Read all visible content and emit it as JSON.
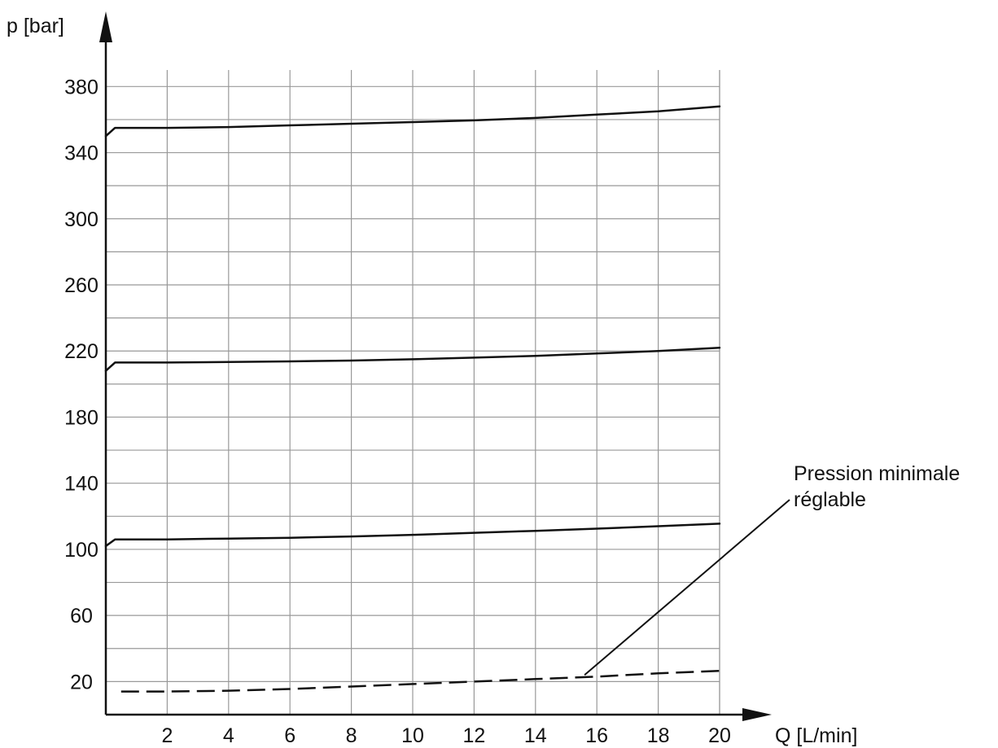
{
  "chart_data": {
    "type": "line",
    "xlabel": "Q [L/min]",
    "ylabel": "p [bar]",
    "xlim": [
      0,
      20
    ],
    "ylim": [
      0,
      390
    ],
    "x_ticks": [
      2,
      4,
      6,
      8,
      10,
      12,
      14,
      16,
      18,
      20
    ],
    "y_ticks": [
      20,
      60,
      100,
      140,
      180,
      220,
      260,
      300,
      340,
      380
    ],
    "grid": true,
    "colors": {
      "line": "#111111",
      "grid": "#999999"
    },
    "series": [
      {
        "style": "solid",
        "points": [
          [
            0,
            350
          ],
          [
            0.3,
            355
          ],
          [
            2,
            355
          ],
          [
            4,
            355.5
          ],
          [
            6,
            356.5
          ],
          [
            8,
            357.5
          ],
          [
            10,
            358.5
          ],
          [
            12,
            359.5
          ],
          [
            14,
            361
          ],
          [
            16,
            363
          ],
          [
            18,
            365
          ],
          [
            20,
            368
          ]
        ]
      },
      {
        "style": "solid",
        "points": [
          [
            0,
            208
          ],
          [
            0.3,
            213
          ],
          [
            2,
            213
          ],
          [
            4,
            213.3
          ],
          [
            6,
            213.7
          ],
          [
            8,
            214.2
          ],
          [
            10,
            215
          ],
          [
            12,
            216
          ],
          [
            14,
            217
          ],
          [
            16,
            218.5
          ],
          [
            18,
            220
          ],
          [
            20,
            222
          ]
        ]
      },
      {
        "style": "solid",
        "points": [
          [
            0,
            102
          ],
          [
            0.3,
            106
          ],
          [
            2,
            106
          ],
          [
            4,
            106.5
          ],
          [
            6,
            107
          ],
          [
            8,
            107.8
          ],
          [
            10,
            108.8
          ],
          [
            12,
            110
          ],
          [
            14,
            111.2
          ],
          [
            16,
            112.5
          ],
          [
            18,
            114
          ],
          [
            20,
            115.5
          ]
        ]
      },
      {
        "style": "dashed",
        "points": [
          [
            0.5,
            14
          ],
          [
            2,
            14
          ],
          [
            4,
            14.5
          ],
          [
            6,
            15.5
          ],
          [
            8,
            17
          ],
          [
            10,
            18.5
          ],
          [
            12,
            20
          ],
          [
            14,
            21.5
          ],
          [
            16,
            23
          ],
          [
            18,
            25
          ],
          [
            20,
            26.5
          ]
        ]
      }
    ],
    "annotations": [
      {
        "lines": [
          "Pression minimale",
          "réglable"
        ],
        "points_to": [
          15.6,
          23
        ]
      }
    ]
  }
}
